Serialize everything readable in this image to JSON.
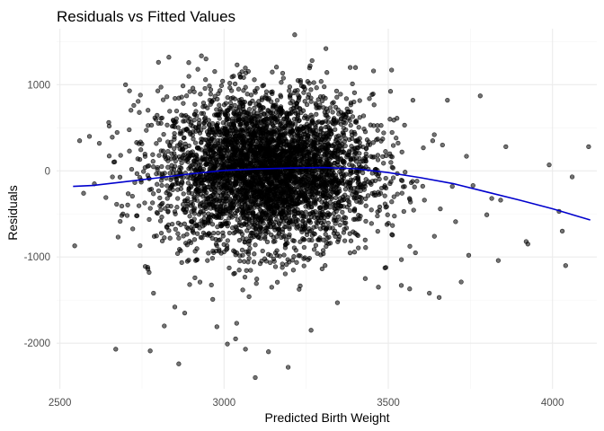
{
  "chart_data": {
    "type": "scatter",
    "title": "Residuals vs Fitted Values",
    "xlabel": "Predicted Birth Weight",
    "ylabel": "Residuals",
    "xlim": [
      2490,
      4135
    ],
    "ylim": [
      -2530,
      1650
    ],
    "x_ticks": [
      2500,
      3000,
      3500,
      4000
    ],
    "y_ticks": [
      -2000,
      -1000,
      0,
      1000
    ],
    "x_tick_labels": [
      "2500",
      "3000",
      "3500",
      "4000"
    ],
    "y_tick_labels": [
      "-2000",
      "-1000",
      "0",
      "1000"
    ],
    "grid": true,
    "legend": "none",
    "point_color": "#000000",
    "smooth_color": "#0000cd",
    "point_cloud": {
      "approx_count": 4300,
      "x_mean": 3130,
      "x_sd": 160,
      "y_mean": 0,
      "y_sd": 440
    },
    "points": [
      {
        "x": 2545,
        "y": -870
      },
      {
        "x": 2560,
        "y": 350
      },
      {
        "x": 2572,
        "y": -260
      },
      {
        "x": 2590,
        "y": 400
      },
      {
        "x": 2605,
        "y": -150
      },
      {
        "x": 2620,
        "y": 320
      },
      {
        "x": 2640,
        "y": -310
      },
      {
        "x": 2650,
        "y": 520
      },
      {
        "x": 2660,
        "y": -70
      },
      {
        "x": 2670,
        "y": -2070
      },
      {
        "x": 2685,
        "y": 180
      },
      {
        "x": 2700,
        "y": 1000
      },
      {
        "x": 2712,
        "y": 930
      },
      {
        "x": 2725,
        "y": 760
      },
      {
        "x": 2735,
        "y": -520
      },
      {
        "x": 2745,
        "y": 880
      },
      {
        "x": 2760,
        "y": -1110
      },
      {
        "x": 2768,
        "y": -1140
      },
      {
        "x": 2775,
        "y": -2090
      },
      {
        "x": 2785,
        "y": -1420
      },
      {
        "x": 2800,
        "y": 1260
      },
      {
        "x": 2818,
        "y": -1800
      },
      {
        "x": 2832,
        "y": 1320
      },
      {
        "x": 2850,
        "y": -1580
      },
      {
        "x": 2862,
        "y": -2240
      },
      {
        "x": 2880,
        "y": -1650
      },
      {
        "x": 2895,
        "y": -1320
      },
      {
        "x": 2920,
        "y": 1180
      },
      {
        "x": 2945,
        "y": 1300
      },
      {
        "x": 2978,
        "y": -1810
      },
      {
        "x": 3010,
        "y": -2010
      },
      {
        "x": 3035,
        "y": -1950
      },
      {
        "x": 3065,
        "y": -2070
      },
      {
        "x": 3095,
        "y": -2400
      },
      {
        "x": 3135,
        "y": -2100
      },
      {
        "x": 3195,
        "y": -2280
      },
      {
        "x": 3215,
        "y": 1580
      },
      {
        "x": 3265,
        "y": -1850
      },
      {
        "x": 3310,
        "y": 1420
      },
      {
        "x": 3345,
        "y": -1530
      },
      {
        "x": 3400,
        "y": 1200
      },
      {
        "x": 3430,
        "y": -1250
      },
      {
        "x": 3455,
        "y": 1160
      },
      {
        "x": 3470,
        "y": -1350
      },
      {
        "x": 3510,
        "y": 1170
      },
      {
        "x": 3540,
        "y": -1030
      },
      {
        "x": 3565,
        "y": -1370
      },
      {
        "x": 3575,
        "y": 820
      },
      {
        "x": 3610,
        "y": -340
      },
      {
        "x": 3625,
        "y": -1420
      },
      {
        "x": 3640,
        "y": 420
      },
      {
        "x": 3655,
        "y": -1470
      },
      {
        "x": 3665,
        "y": 300
      },
      {
        "x": 3680,
        "y": 820
      },
      {
        "x": 3695,
        "y": -180
      },
      {
        "x": 3705,
        "y": -590
      },
      {
        "x": 3722,
        "y": -1290
      },
      {
        "x": 3738,
        "y": 170
      },
      {
        "x": 3745,
        "y": -980
      },
      {
        "x": 3758,
        "y": -170
      },
      {
        "x": 3780,
        "y": 870
      },
      {
        "x": 3800,
        "y": -510
      },
      {
        "x": 3815,
        "y": -320
      },
      {
        "x": 3835,
        "y": -1040
      },
      {
        "x": 3842,
        "y": -340
      },
      {
        "x": 3858,
        "y": 280
      },
      {
        "x": 3920,
        "y": -820
      },
      {
        "x": 3925,
        "y": -850
      },
      {
        "x": 3990,
        "y": 70
      },
      {
        "x": 4020,
        "y": -470
      },
      {
        "x": 4030,
        "y": -700
      },
      {
        "x": 4040,
        "y": -1100
      },
      {
        "x": 4060,
        "y": -70
      },
      {
        "x": 4110,
        "y": 280
      }
    ],
    "smooth_line": [
      {
        "x": 2540,
        "y": -180
      },
      {
        "x": 2600,
        "y": -170
      },
      {
        "x": 2700,
        "y": -125
      },
      {
        "x": 2800,
        "y": -80
      },
      {
        "x": 2900,
        "y": -35
      },
      {
        "x": 3000,
        "y": 5
      },
      {
        "x": 3100,
        "y": 22
      },
      {
        "x": 3200,
        "y": 32
      },
      {
        "x": 3300,
        "y": 38
      },
      {
        "x": 3400,
        "y": 25
      },
      {
        "x": 3500,
        "y": -20
      },
      {
        "x": 3600,
        "y": -80
      },
      {
        "x": 3700,
        "y": -150
      },
      {
        "x": 3800,
        "y": -245
      },
      {
        "x": 3900,
        "y": -340
      },
      {
        "x": 4000,
        "y": -440
      },
      {
        "x": 4115,
        "y": -570
      }
    ]
  }
}
